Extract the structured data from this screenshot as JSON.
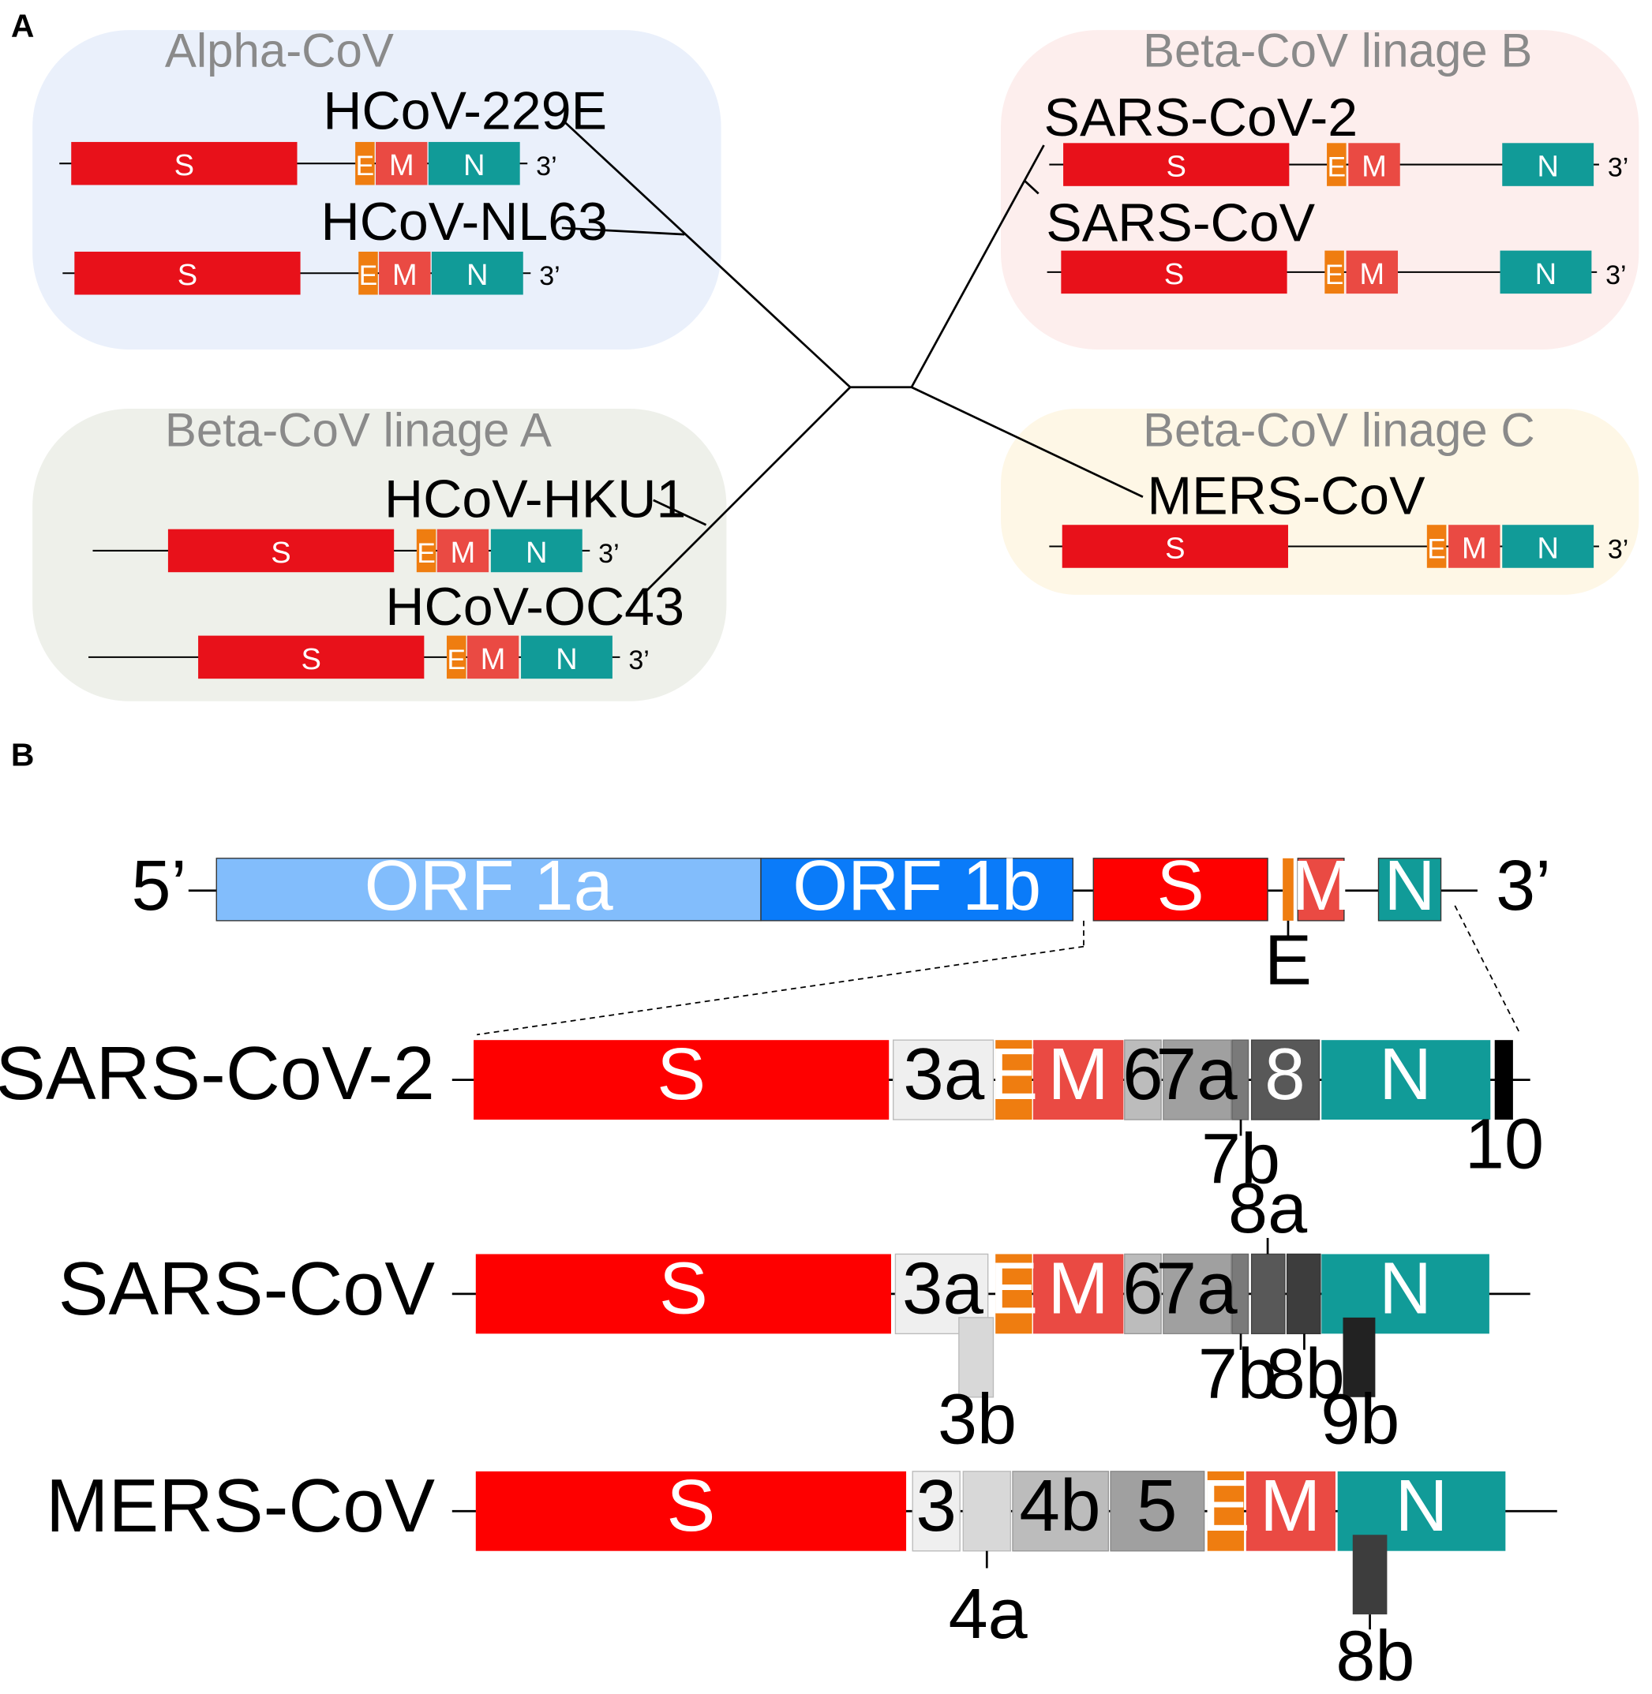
{
  "panel_a": {
    "letter": "A",
    "groups": [
      {
        "title": "Alpha-CoV",
        "fill": "#eaf0fb"
      },
      {
        "title": "Beta-CoV linage B",
        "fill": "#fdeeed"
      },
      {
        "title": "Beta-CoV linage A",
        "fill": "#eef0ea"
      },
      {
        "title": "Beta-CoV linage C",
        "fill": "#fef7e6"
      }
    ],
    "viruses": [
      "HCoV-229E",
      "HCoV-NL63",
      "HCoV-HKU1",
      "HCoV-OC43",
      "SARS-CoV-2",
      "SARS-CoV",
      "MERS-CoV"
    ],
    "genes": {
      "s": "S",
      "e": "E",
      "m": "M",
      "n": "N"
    },
    "three_prime": "3’"
  },
  "panel_b": {
    "letter": "B",
    "five_prime": "5’",
    "three_prime": "3’",
    "genome": {
      "orf1a": "ORF 1a",
      "orf1b": "ORF 1b",
      "s": "S",
      "m": "M",
      "n": "N",
      "e": "E"
    },
    "rows": {
      "sars2": {
        "name": "SARS-CoV-2",
        "genes": [
          "S",
          "3a",
          "E",
          "M",
          "6",
          "7a",
          "8",
          "N"
        ],
        "below": [
          "7b",
          "10"
        ]
      },
      "sars": {
        "name": "SARS-CoV",
        "genes": [
          "S",
          "3a",
          "E",
          "M",
          "6",
          "7a",
          "N"
        ],
        "above": [
          "8a"
        ],
        "below": [
          "3b",
          "7b",
          "8b",
          "9b"
        ]
      },
      "mers": {
        "name": "MERS-CoV",
        "genes": [
          "S",
          "3",
          "4b",
          "5",
          "E",
          "M",
          "N"
        ],
        "below": [
          "4a",
          "8b"
        ]
      }
    }
  },
  "colors": {
    "spike": "#e8111a",
    "spike_b": "#fe0000",
    "envelope": "#ef7d10",
    "membrane": "#ea4a43",
    "nucleocapsid": "#119b98",
    "orf1a": "#82bdfc",
    "orf1b": "#0a7bf9"
  }
}
